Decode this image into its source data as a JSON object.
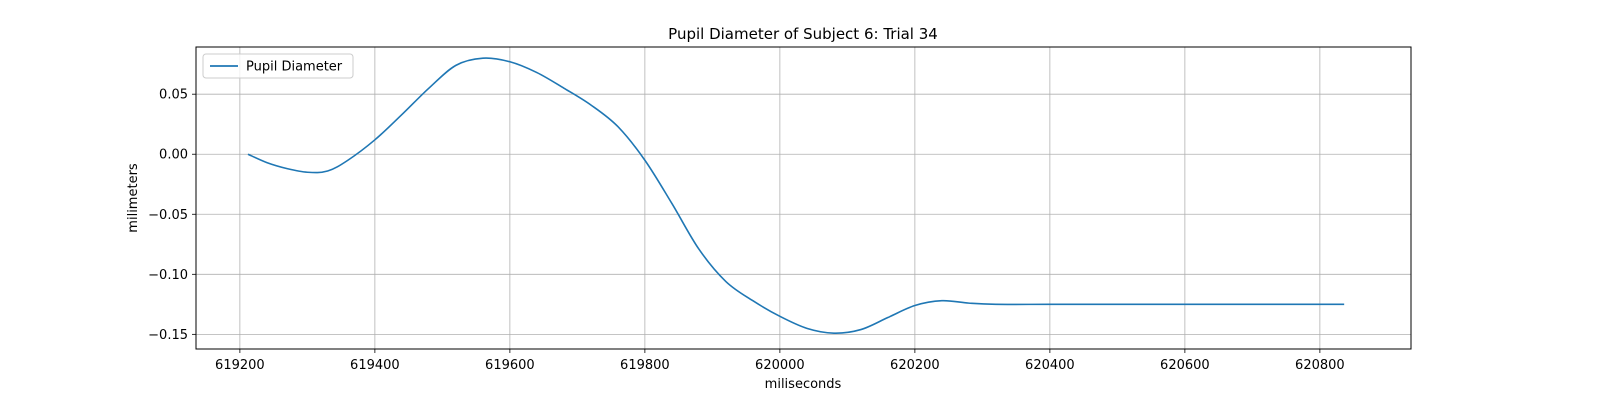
{
  "chart_data": {
    "type": "line",
    "title": "Pupil Diameter of Subject 6: Trial 34",
    "xlabel": "miliseconds",
    "ylabel": "milimeters",
    "xlim": [
      619135,
      620935
    ],
    "ylim": [
      -0.1622,
      0.0893
    ],
    "xticks": [
      619200,
      619400,
      619600,
      619800,
      620000,
      620200,
      620400,
      620600,
      620800
    ],
    "yticks": [
      -0.15,
      -0.1,
      -0.05,
      0.0,
      0.05
    ],
    "ytick_labels": [
      "−0.15",
      "−0.10",
      "−0.05",
      "0.00",
      "0.05"
    ],
    "grid": true,
    "legend": {
      "position": "top-left"
    },
    "series": [
      {
        "name": "Pupil Diameter",
        "color": "#1f77b4",
        "x": [
          619212,
          619240,
          619270,
          619300,
          619330,
          619360,
          619400,
          619440,
          619480,
          619520,
          619560,
          619600,
          619640,
          619680,
          619720,
          619760,
          619800,
          619840,
          619880,
          619920,
          619960,
          620000,
          620040,
          620080,
          620120,
          620160,
          620200,
          620240,
          620280,
          620320,
          620400,
          620500,
          620600,
          620700,
          620836
        ],
        "y": [
          0.0,
          -0.007,
          -0.012,
          -0.015,
          -0.014,
          -0.005,
          0.012,
          0.033,
          0.055,
          0.074,
          0.08,
          0.077,
          0.068,
          0.055,
          0.041,
          0.023,
          -0.005,
          -0.041,
          -0.079,
          -0.106,
          -0.122,
          -0.135,
          -0.145,
          -0.149,
          -0.146,
          -0.136,
          -0.126,
          -0.122,
          -0.124,
          -0.125,
          -0.125,
          -0.125,
          -0.125,
          -0.125,
          -0.125
        ]
      }
    ]
  }
}
